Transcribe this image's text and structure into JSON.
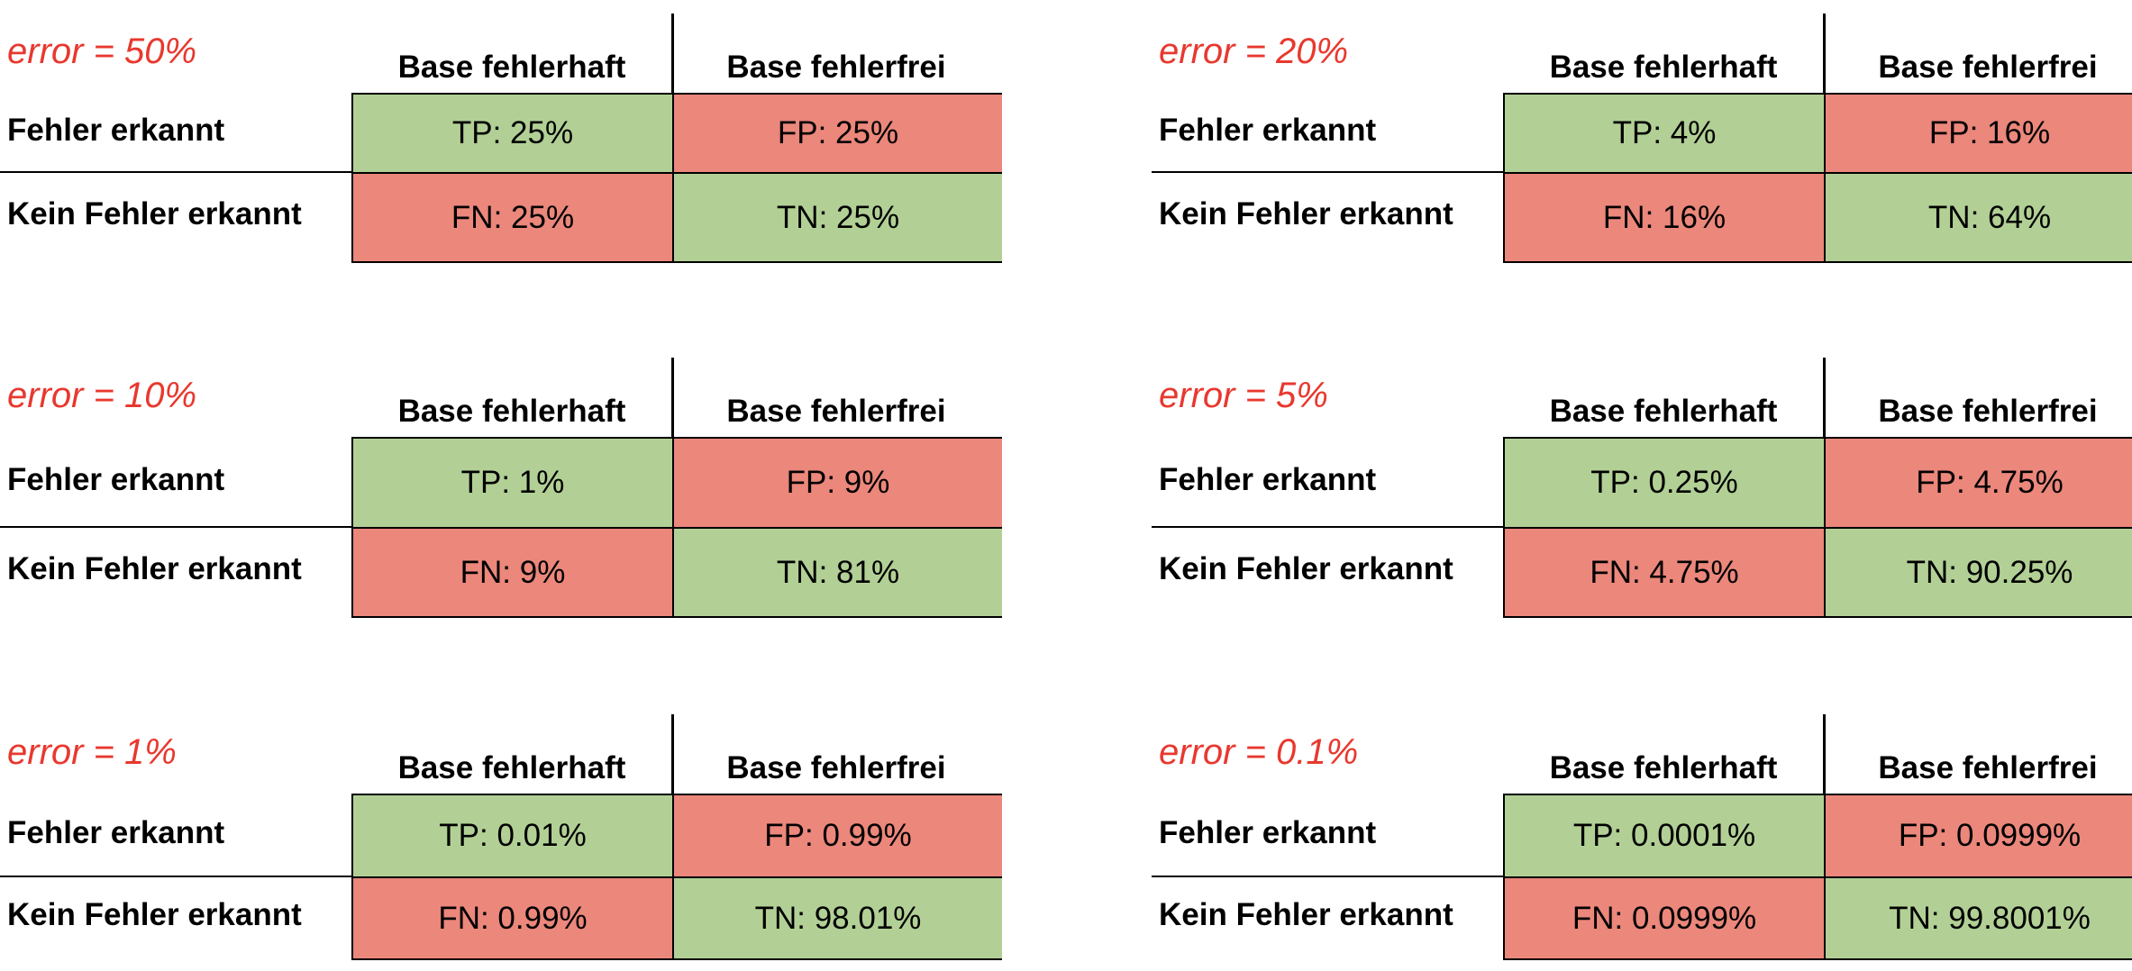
{
  "column_headers": [
    "Base fehlerhaft",
    "Base fehlerfrei"
  ],
  "row_labels": [
    "Fehler erkannt",
    "Kein Fehler erkannt"
  ],
  "colors": {
    "error_label": "#e8382e",
    "good_cell": "#b2d095",
    "bad_cell": "#eb877b"
  },
  "panels": [
    {
      "error": "error = 50%",
      "tp": "TP: 25%",
      "fp": "FP: 25%",
      "fn": "FN: 25%",
      "tn": "TN: 25%"
    },
    {
      "error": "error = 20%",
      "tp": "TP: 4%",
      "fp": "FP: 16%",
      "fn": "FN: 16%",
      "tn": "TN: 64%"
    },
    {
      "error": "error = 10%",
      "tp": "TP: 1%",
      "fp": "FP: 9%",
      "fn": "FN: 9%",
      "tn": "TN: 81%"
    },
    {
      "error": "error = 5%",
      "tp": "TP: 0.25%",
      "fp": "FP: 4.75%",
      "fn": "FN: 4.75%",
      "tn": "TN: 90.25%"
    },
    {
      "error": "error = 1%",
      "tp": "TP: 0.01%",
      "fp": "FP: 0.99%",
      "fn": "FN: 0.99%",
      "tn": "TN: 98.01%"
    },
    {
      "error": "error = 0.1%",
      "tp": "TP: 0.0001%",
      "fp": "FP: 0.0999%",
      "fn": "FN: 0.0999%",
      "tn": "TN: 99.8001%"
    }
  ]
}
